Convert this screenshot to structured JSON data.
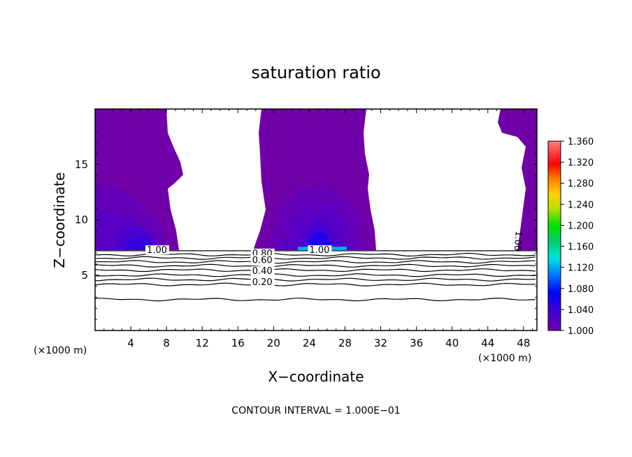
{
  "chart_data": {
    "type": "heatmap",
    "title": "saturation ratio",
    "xlabel": "X−coordinate",
    "ylabel": "Z−coordinate",
    "x_unit_left": "(×1000 m)",
    "x_unit_right": "(×1000 m)",
    "xlim": [
      0,
      49.5
    ],
    "ylim": [
      0,
      20
    ],
    "xticks": [
      4,
      8,
      12,
      16,
      20,
      24,
      28,
      32,
      36,
      40,
      44,
      48
    ],
    "xtick_labels": [
      "4",
      "8",
      "12",
      "16",
      "20",
      "24",
      "28",
      "32",
      "36",
      "40",
      "44",
      "48"
    ],
    "yticks": [
      5,
      10,
      15
    ],
    "ytick_labels": [
      "5",
      "10",
      "15"
    ],
    "colorbar": {
      "min": 1.0,
      "max": 1.36,
      "ticks": [
        1.36,
        1.32,
        1.28,
        1.24,
        1.2,
        1.16,
        1.12,
        1.08,
        1.04,
        1.0
      ],
      "tick_labels": [
        "1.360",
        "1.320",
        "1.280",
        "1.240",
        "1.200",
        "1.160",
        "1.120",
        "1.080",
        "1.040",
        "1.000"
      ]
    },
    "contour_interval_text": "CONTOUR INTERVAL = 1.000E−01",
    "contour_levels_z": [
      {
        "level": 0.9,
        "z": 6.85
      },
      {
        "level": 0.8,
        "z": 6.55
      },
      {
        "level": 0.7,
        "z": 6.2
      },
      {
        "level": 0.6,
        "z": 5.85
      },
      {
        "level": 0.5,
        "z": 5.45
      },
      {
        "level": 0.4,
        "z": 5.0
      },
      {
        "level": 0.3,
        "z": 4.6
      },
      {
        "level": 0.2,
        "z": 4.15
      },
      {
        "level": 0.1,
        "z": 2.8
      }
    ],
    "contour_labels": [
      {
        "text": "0.80",
        "x": 17.6,
        "z": 6.7
      },
      {
        "text": "0.60",
        "x": 17.6,
        "z": 6.1
      },
      {
        "text": "0.40",
        "x": 17.6,
        "z": 5.1
      },
      {
        "text": "0.20",
        "x": 17.6,
        "z": 4.1
      },
      {
        "text": "1.00",
        "x": 5.8,
        "z": 7.0
      },
      {
        "text": "1.00",
        "x": 24.0,
        "z": 7.0
      }
    ],
    "supersaturated_regions": [
      {
        "x_left_base": 0,
        "x_right_base": 9.0,
        "z_base": 7.2,
        "core_x": 5.5,
        "core_z": 7.8
      },
      {
        "x_left_base": 18.8,
        "x_right_base": 31.5,
        "z_base": 7.2,
        "core_x": 25.0,
        "core_z": 8.5
      },
      {
        "x_left_base": 45.5,
        "x_right_base": 49.5,
        "z_base": 7.2,
        "core_x": 48.5,
        "core_z": 9.0
      }
    ]
  }
}
